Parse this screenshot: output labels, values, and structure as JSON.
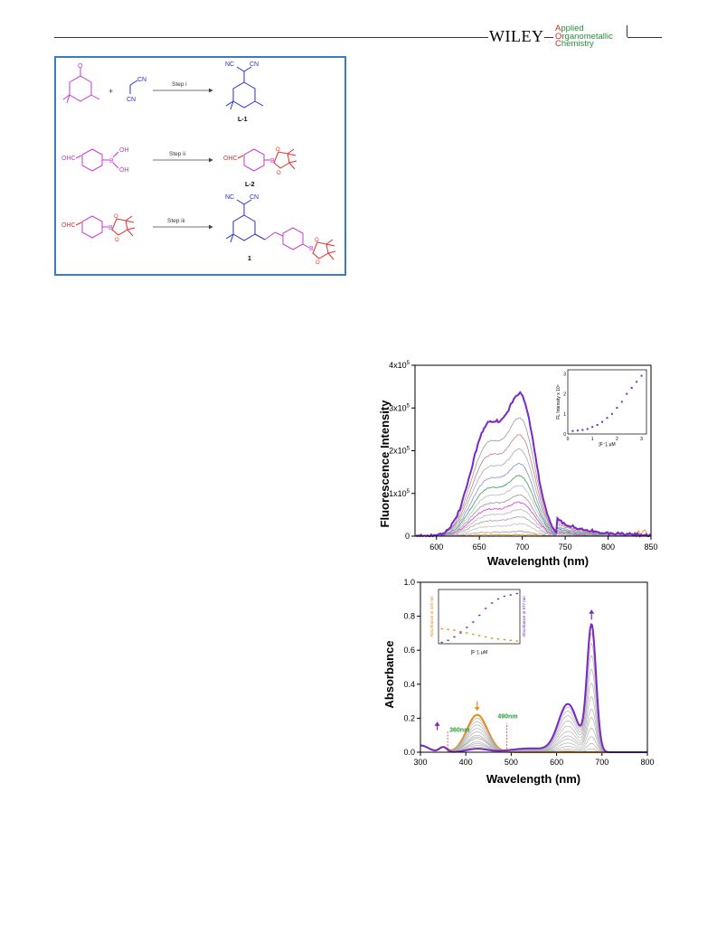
{
  "header": {
    "publisher": "WILEY",
    "journal_line1": {
      "cap": "A",
      "rest": "pplied"
    },
    "journal_line2": {
      "cap": "O",
      "rest": "rganometallic"
    },
    "journal_line3": {
      "cap": "C",
      "rest": "hemistry"
    }
  },
  "scheme": {
    "step1": "Step i",
    "step2": "Step ii",
    "step3": "Step iii",
    "label1": "L-1",
    "label2": "L-2",
    "label3": "1",
    "plus": "+",
    "cn": "CN",
    "nc": "NC",
    "ohc": "OHC",
    "oh": "OH",
    "o": "O",
    "b": "B"
  },
  "colors": {
    "blue": "#2b2bd6",
    "magenta": "#c837d8",
    "red": "#e0302a",
    "purple": "#7a28c6",
    "orange": "#e88a1a",
    "green": "#2a9a3a",
    "frame": "#3b7dc4"
  },
  "chart_data": [
    {
      "type": "line",
      "xlabel": "Wavelenghth (nm)",
      "ylabel": "Fluorescence Intensity",
      "xlim": [
        575,
        850
      ],
      "ylim": [
        0,
        4
      ],
      "xticks": [
        "600",
        "650",
        "700",
        "750",
        "800",
        "850"
      ],
      "yticks": [
        "0",
        "1x10",
        "2x10",
        "3x10",
        "4x10"
      ],
      "ytick_exp": "5",
      "series_peaks": [
        0.03,
        0.1,
        0.25,
        0.4,
        0.55,
        0.7,
        0.85,
        1.05,
        1.25,
        1.5,
        1.8,
        2.1,
        2.45,
        2.95
      ],
      "inset": {
        "xlabel": "[F⁻], μM",
        "ylabel": "FL Intensity x 10⁵",
        "xlim": [
          0,
          3.2
        ],
        "ylim": [
          0,
          3.2
        ],
        "xticks": [
          "0",
          "1",
          "2",
          "3"
        ],
        "yticks": [
          "0",
          "1",
          "2",
          "3"
        ],
        "x": [
          0.2,
          0.4,
          0.6,
          0.8,
          1.0,
          1.2,
          1.4,
          1.6,
          1.8,
          2.0,
          2.2,
          2.4,
          2.6,
          2.8,
          3.0
        ],
        "y": [
          0.15,
          0.17,
          0.2,
          0.25,
          0.35,
          0.45,
          0.6,
          0.8,
          1.0,
          1.3,
          1.6,
          2.0,
          2.3,
          2.6,
          2.9
        ]
      }
    },
    {
      "type": "line",
      "xlabel": "Wavelength (nm)",
      "ylabel": "Absorbance",
      "xlim": [
        300,
        800
      ],
      "ylim": [
        0,
        1.0
      ],
      "xticks": [
        "300",
        "400",
        "500",
        "600",
        "700",
        "800"
      ],
      "yticks": [
        "0.0",
        "0.2",
        "0.4",
        "0.6",
        "0.8",
        "1.0"
      ],
      "annotations": [
        "360nm",
        "490nm"
      ],
      "peak_heights_677": [
        0.0,
        0.02,
        0.05,
        0.09,
        0.14,
        0.2,
        0.25,
        0.32,
        0.4,
        0.48,
        0.56,
        0.63,
        0.69,
        0.74
      ],
      "peak_heights_425": [
        0.22,
        0.2,
        0.18,
        0.16,
        0.14,
        0.12,
        0.1,
        0.09,
        0.08,
        0.06,
        0.05,
        0.04,
        0.03,
        0.02
      ],
      "inset": {
        "xlabel": "[F⁻], μM",
        "ylabel_left": "Absorbance at 425 nm",
        "ylabel_right": "Absorbance at 677 nm",
        "x": [
          1,
          2,
          3,
          4,
          5,
          6,
          7,
          8,
          9,
          10,
          11,
          12,
          13
        ],
        "y_orange": [
          0.22,
          0.21,
          0.2,
          0.18,
          0.16,
          0.14,
          0.12,
          0.1,
          0.08,
          0.07,
          0.06,
          0.05,
          0.04
        ],
        "y_purple": [
          0.02,
          0.05,
          0.1,
          0.16,
          0.24,
          0.32,
          0.42,
          0.52,
          0.6,
          0.66,
          0.7,
          0.72,
          0.74
        ]
      }
    }
  ]
}
